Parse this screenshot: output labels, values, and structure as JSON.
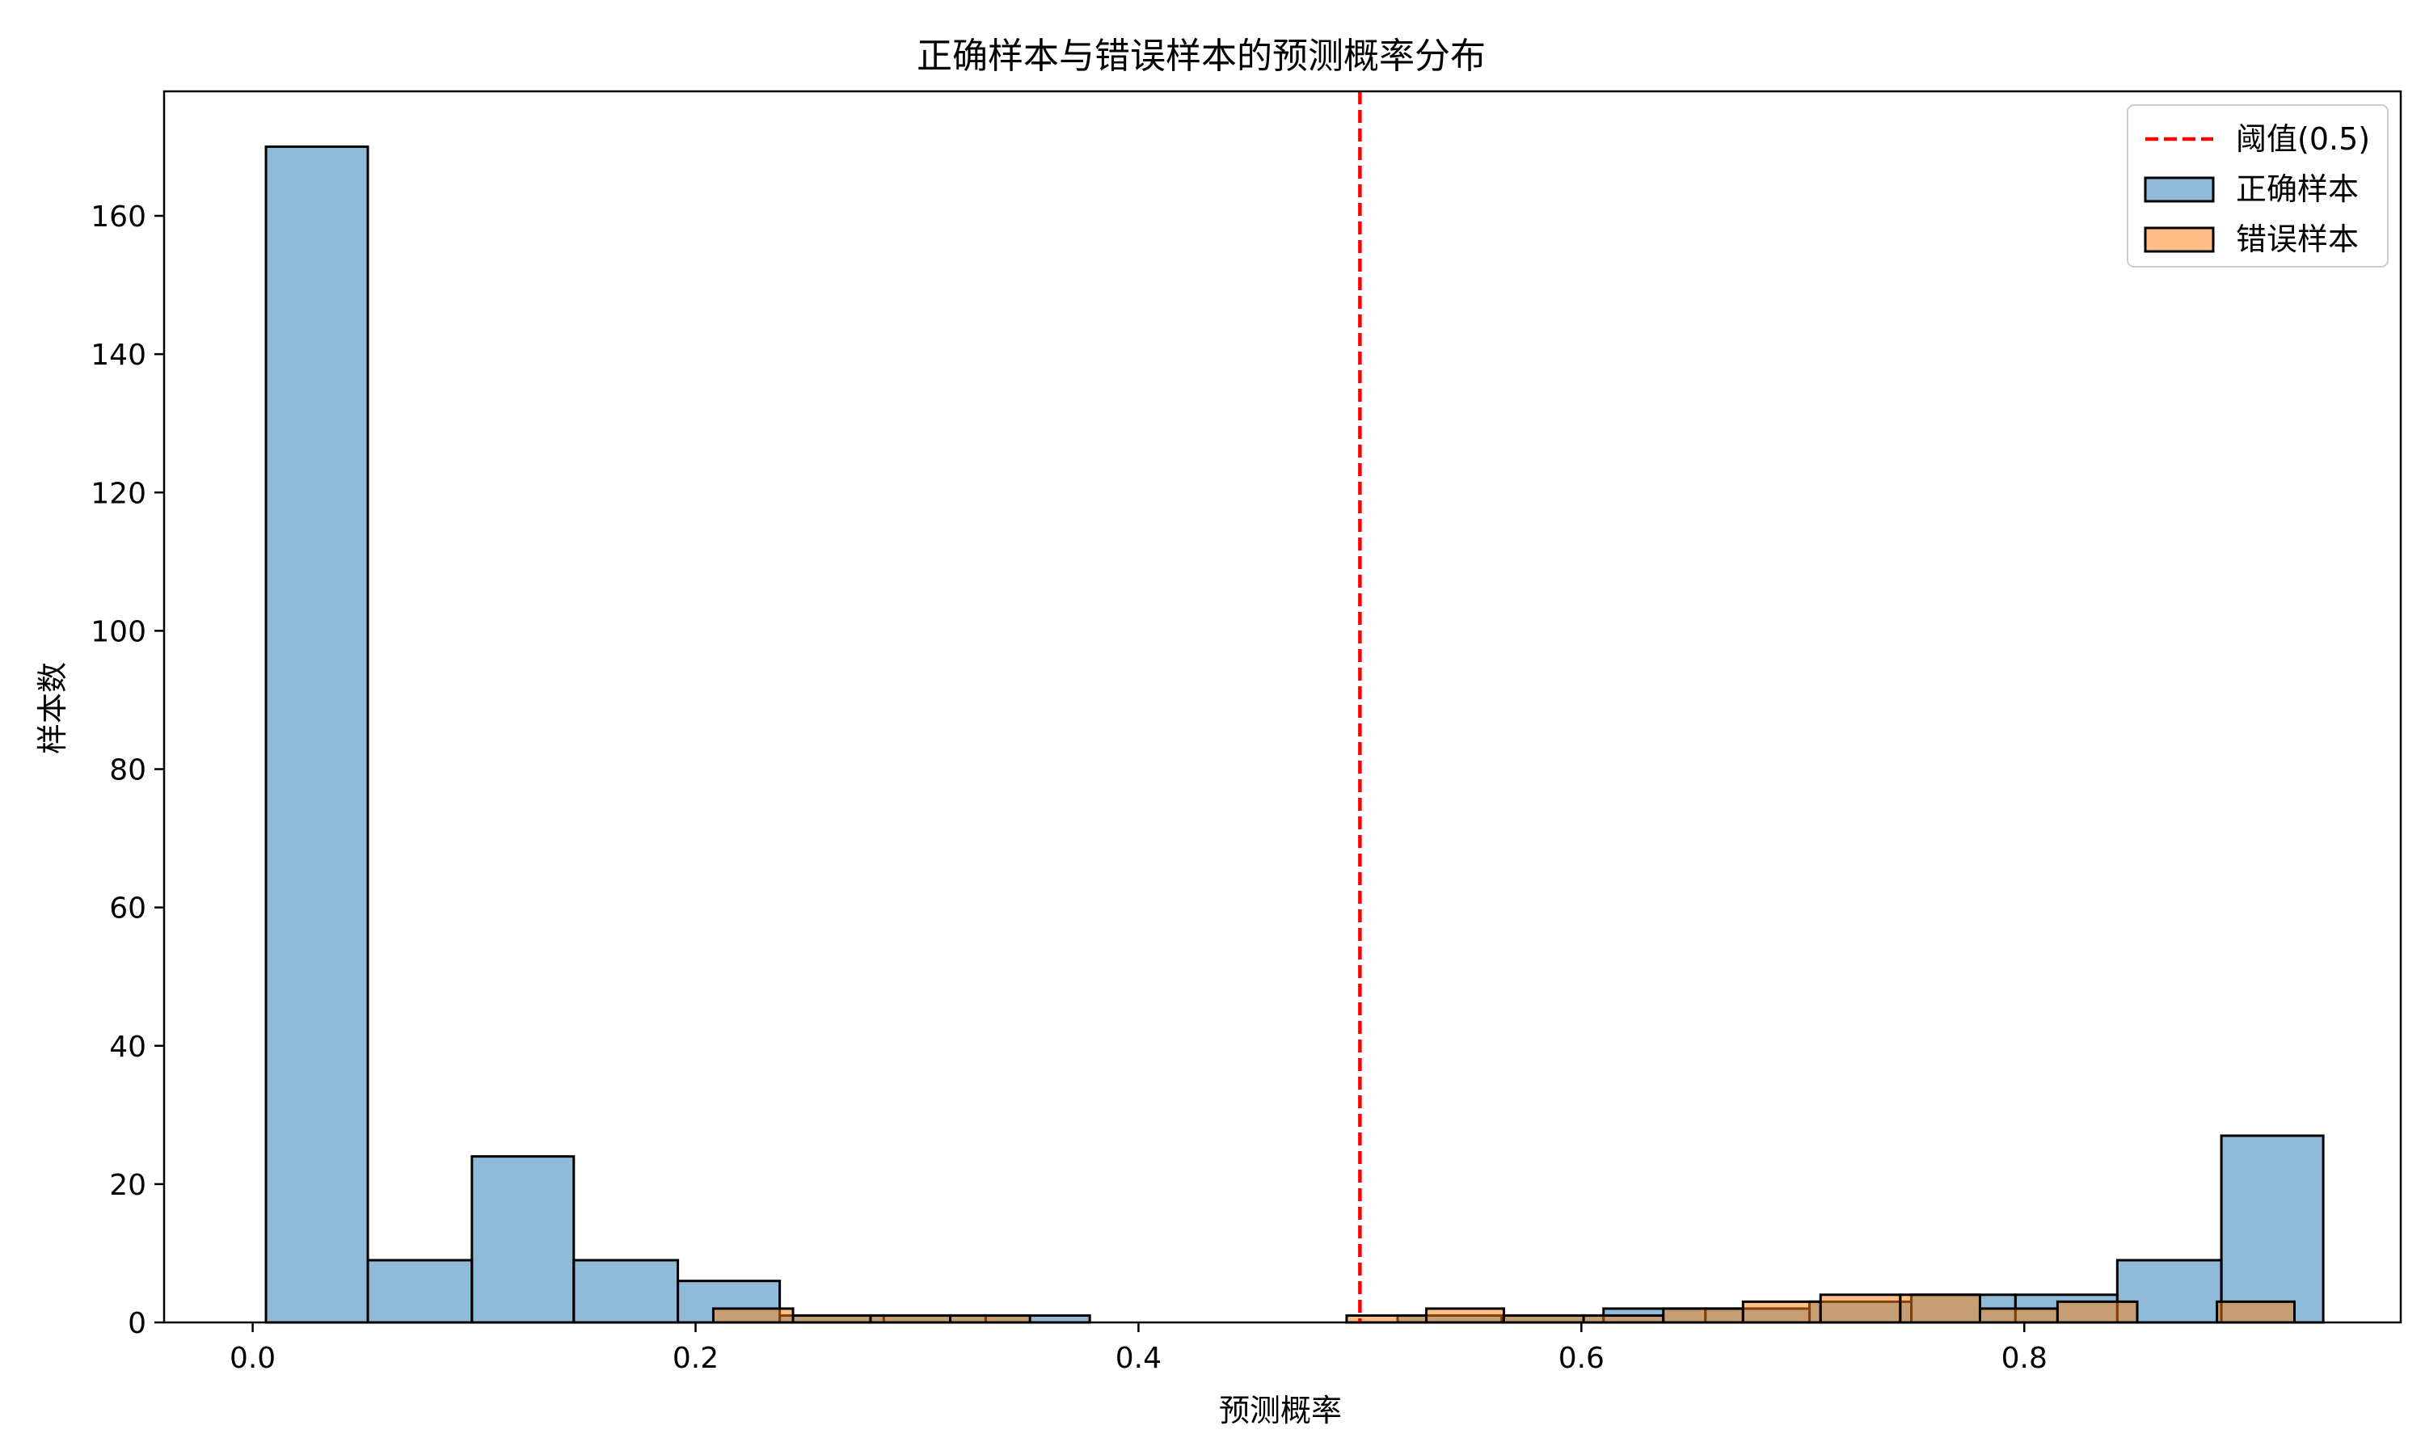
{
  "chart_data": {
    "type": "histogram",
    "title": "正确样本与错误样本的预测概率分布",
    "xlabel": "预测概率",
    "ylabel": "样本数",
    "xlim": [
      -0.04,
      0.97
    ],
    "ylim": [
      0,
      178
    ],
    "xticks": [
      {
        "value": 0.0,
        "label": "0.0"
      },
      {
        "value": 0.2,
        "label": "0.2"
      },
      {
        "value": 0.4,
        "label": "0.4"
      },
      {
        "value": 0.6,
        "label": "0.6"
      },
      {
        "value": 0.8,
        "label": "0.8"
      }
    ],
    "yticks": [
      {
        "value": 0,
        "label": "0"
      },
      {
        "value": 20,
        "label": "20"
      },
      {
        "value": 40,
        "label": "40"
      },
      {
        "value": 60,
        "label": "60"
      },
      {
        "value": 80,
        "label": "80"
      },
      {
        "value": 100,
        "label": "100"
      },
      {
        "value": 120,
        "label": "120"
      },
      {
        "value": 140,
        "label": "140"
      },
      {
        "value": 160,
        "label": "160"
      }
    ],
    "grid": false,
    "legend_position": "top-right",
    "threshold": {
      "x": 0.5,
      "label": "阈值(0.5)",
      "color": "#ff0000",
      "style": "dashed"
    },
    "series": [
      {
        "name": "正确样本",
        "color": "#1f77b4",
        "alpha": 0.5,
        "bins": [
          {
            "x0": 0.006,
            "x1": 0.052,
            "count": 170
          },
          {
            "x0": 0.052,
            "x1": 0.099,
            "count": 9
          },
          {
            "x0": 0.099,
            "x1": 0.145,
            "count": 24
          },
          {
            "x0": 0.145,
            "x1": 0.192,
            "count": 9
          },
          {
            "x0": 0.192,
            "x1": 0.238,
            "count": 6
          },
          {
            "x0": 0.238,
            "x1": 0.285,
            "count": 1
          },
          {
            "x0": 0.285,
            "x1": 0.331,
            "count": 1
          },
          {
            "x0": 0.331,
            "x1": 0.378,
            "count": 1
          },
          {
            "x0": 0.378,
            "x1": 0.424,
            "count": 0
          },
          {
            "x0": 0.424,
            "x1": 0.471,
            "count": 0
          },
          {
            "x0": 0.471,
            "x1": 0.517,
            "count": 0
          },
          {
            "x0": 0.517,
            "x1": 0.564,
            "count": 1
          },
          {
            "x0": 0.564,
            "x1": 0.61,
            "count": 1
          },
          {
            "x0": 0.61,
            "x1": 0.656,
            "count": 2
          },
          {
            "x0": 0.656,
            "x1": 0.703,
            "count": 2
          },
          {
            "x0": 0.703,
            "x1": 0.749,
            "count": 3
          },
          {
            "x0": 0.749,
            "x1": 0.796,
            "count": 4
          },
          {
            "x0": 0.796,
            "x1": 0.842,
            "count": 4
          },
          {
            "x0": 0.842,
            "x1": 0.889,
            "count": 9
          },
          {
            "x0": 0.889,
            "x1": 0.935,
            "count": 27
          }
        ]
      },
      {
        "name": "错误样本",
        "color": "#ff7f0e",
        "alpha": 0.5,
        "bins": [
          {
            "x0": 0.208,
            "x1": 0.244,
            "count": 2
          },
          {
            "x0": 0.244,
            "x1": 0.279,
            "count": 1
          },
          {
            "x0": 0.279,
            "x1": 0.315,
            "count": 1
          },
          {
            "x0": 0.315,
            "x1": 0.351,
            "count": 1
          },
          {
            "x0": 0.351,
            "x1": 0.387,
            "count": 0
          },
          {
            "x0": 0.387,
            "x1": 0.422,
            "count": 0
          },
          {
            "x0": 0.422,
            "x1": 0.458,
            "count": 0
          },
          {
            "x0": 0.458,
            "x1": 0.494,
            "count": 0
          },
          {
            "x0": 0.494,
            "x1": 0.53,
            "count": 1
          },
          {
            "x0": 0.53,
            "x1": 0.565,
            "count": 2
          },
          {
            "x0": 0.565,
            "x1": 0.601,
            "count": 1
          },
          {
            "x0": 0.601,
            "x1": 0.637,
            "count": 1
          },
          {
            "x0": 0.637,
            "x1": 0.673,
            "count": 2
          },
          {
            "x0": 0.673,
            "x1": 0.708,
            "count": 3
          },
          {
            "x0": 0.708,
            "x1": 0.744,
            "count": 4
          },
          {
            "x0": 0.744,
            "x1": 0.78,
            "count": 4
          },
          {
            "x0": 0.78,
            "x1": 0.815,
            "count": 2
          },
          {
            "x0": 0.815,
            "x1": 0.851,
            "count": 3
          },
          {
            "x0": 0.851,
            "x1": 0.887,
            "count": 0
          },
          {
            "x0": 0.887,
            "x1": 0.922,
            "count": 3
          }
        ]
      }
    ]
  }
}
